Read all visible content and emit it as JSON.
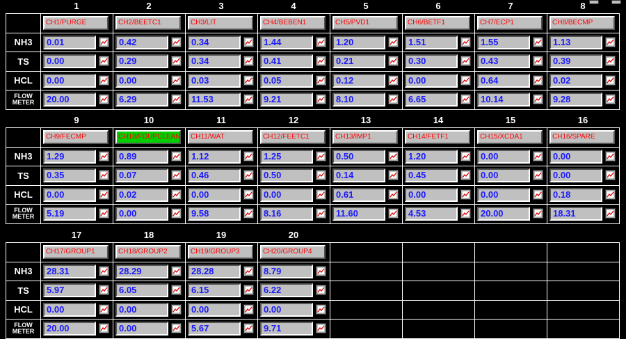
{
  "row_labels": [
    "NH3",
    "TS",
    "HCL",
    "FLOW METER"
  ],
  "blocks": [
    {
      "channels": [
        {
          "number": "1",
          "name": "CH1/PURGE",
          "values": [
            "0.01",
            "0.00",
            "0.00",
            "20.00"
          ]
        },
        {
          "number": "2",
          "name": "CH2/BEETC1",
          "values": [
            "0.42",
            "0.29",
            "0.00",
            "6.29"
          ]
        },
        {
          "number": "3",
          "name": "CH3/LIT",
          "values": [
            "0.34",
            "0.34",
            "0.03",
            "11.53"
          ]
        },
        {
          "number": "4",
          "name": "CH4/BEBEN1",
          "values": [
            "1.44",
            "0.41",
            "0.05",
            "9.21"
          ]
        },
        {
          "number": "5",
          "name": "CH5/PVD1",
          "values": [
            "1.20",
            "0.21",
            "0.12",
            "8.10"
          ]
        },
        {
          "number": "6",
          "name": "CH6/BETF1",
          "values": [
            "1.51",
            "0.30",
            "0.00",
            "6.65"
          ]
        },
        {
          "number": "7",
          "name": "CH7/ECP1",
          "values": [
            "1.55",
            "0.43",
            "0.64",
            "10.14"
          ]
        },
        {
          "number": "8",
          "name": "CH8/BECMP",
          "values": [
            "1.13",
            "0.39",
            "0.02",
            "9.28"
          ]
        }
      ]
    },
    {
      "channels": [
        {
          "number": "9",
          "name": "CH9/FECMP",
          "values": [
            "1.29",
            "0.35",
            "0.00",
            "5.19"
          ]
        },
        {
          "number": "10",
          "name": "CH10/FOUPCLEAN",
          "values": [
            "0.89",
            "0.07",
            "0.02",
            "0.00"
          ],
          "name_bg": "#00d000"
        },
        {
          "number": "11",
          "name": "CH11/WAT",
          "values": [
            "1.12",
            "0.46",
            "0.00",
            "9.58"
          ]
        },
        {
          "number": "12",
          "name": "CH12/FEETC1",
          "values": [
            "1.25",
            "0.50",
            "0.00",
            "8.16"
          ]
        },
        {
          "number": "13",
          "name": "CH13/IMP1",
          "values": [
            "0.50",
            "0.14",
            "0.61",
            "11.60"
          ]
        },
        {
          "number": "14",
          "name": "CH14/FETF1",
          "values": [
            "1.20",
            "0.45",
            "0.00",
            "4.53"
          ]
        },
        {
          "number": "15",
          "name": "CH15/XCDA1",
          "values": [
            "0.00",
            "0.00",
            "0.00",
            "20.00"
          ]
        },
        {
          "number": "16",
          "name": "CH16/SPARE",
          "values": [
            "0.00",
            "0.00",
            "0.18",
            "18.31"
          ]
        }
      ]
    },
    {
      "channels": [
        {
          "number": "17",
          "name": "CH17/GROUP1",
          "values": [
            "28.31",
            "5.97",
            "0.00",
            "20.00"
          ]
        },
        {
          "number": "18",
          "name": "CH18/GROUP2",
          "values": [
            "28.29",
            "6.05",
            "0.00",
            "0.00"
          ]
        },
        {
          "number": "19",
          "name": "CH19/GROUP3",
          "values": [
            "28.28",
            "6.15",
            "0.00",
            "5.67"
          ]
        },
        {
          "number": "20",
          "name": "CH20/GROUP4",
          "values": [
            "8.79",
            "6.22",
            "0.00",
            "9.71"
          ]
        }
      ]
    }
  ]
}
